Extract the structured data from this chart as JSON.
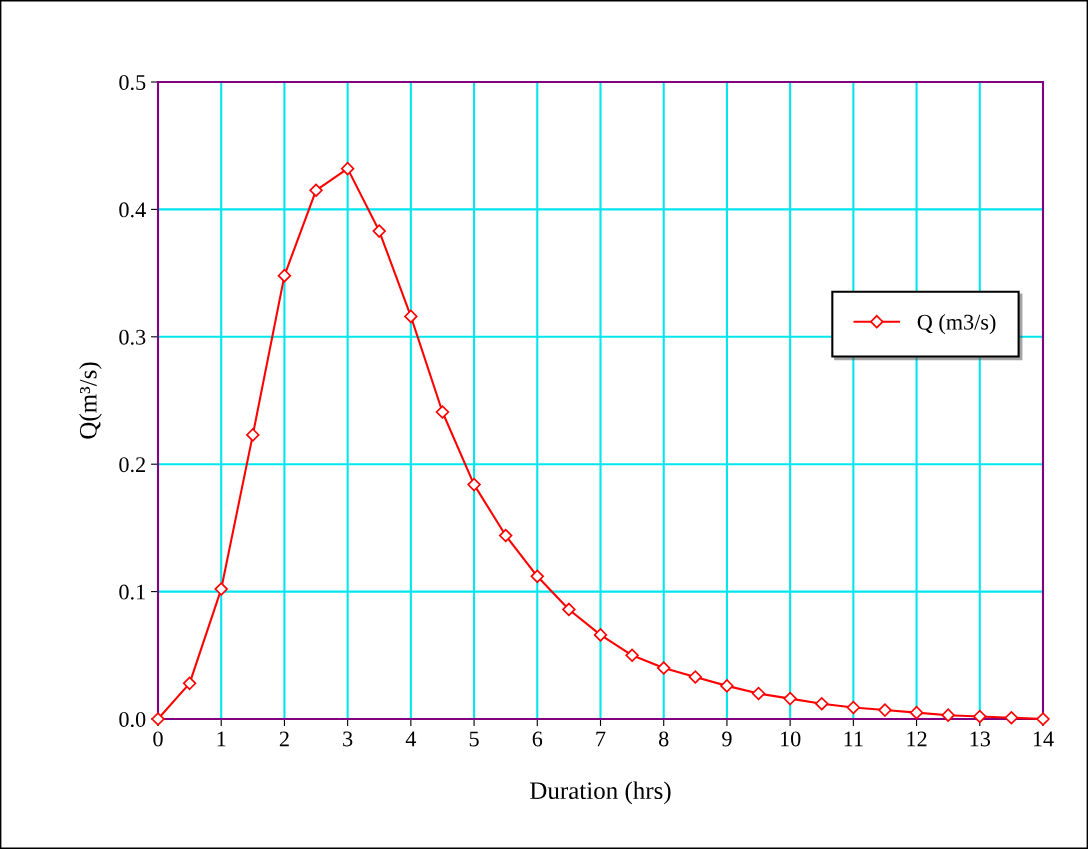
{
  "chart_data": {
    "type": "line",
    "xlabel": "Duration (hrs)",
    "ylabel": "Q(m³/s)",
    "x": [
      0,
      0.5,
      1,
      1.5,
      2,
      2.5,
      3,
      3.5,
      4,
      4.5,
      5,
      5.5,
      6,
      6.5,
      7,
      7.5,
      8,
      8.5,
      9,
      9.5,
      10,
      10.5,
      11,
      11.5,
      12,
      12.5,
      13,
      13.5,
      14
    ],
    "series": [
      {
        "name": "Q (m3/s)",
        "color": "#ff0000",
        "values": [
          0,
          0.028,
          0.102,
          0.223,
          0.348,
          0.415,
          0.432,
          0.383,
          0.316,
          0.241,
          0.184,
          0.144,
          0.112,
          0.086,
          0.066,
          0.05,
          0.04,
          0.033,
          0.026,
          0.02,
          0.016,
          0.012,
          0.009,
          0.007,
          0.005,
          0.003,
          0.002,
          0.001,
          0
        ]
      }
    ],
    "xlim": [
      0,
      14
    ],
    "xticks": [
      0,
      1,
      2,
      3,
      4,
      5,
      6,
      7,
      8,
      9,
      10,
      11,
      12,
      13,
      14
    ],
    "ylim": [
      0,
      0.5
    ],
    "yticks": [
      {
        "value": 0,
        "label": "0.0"
      },
      0.1,
      0.2,
      0.3,
      0.4,
      0.5
    ],
    "grid": true,
    "legend": "center right",
    "marker": "diamond",
    "line_style": "solid"
  }
}
